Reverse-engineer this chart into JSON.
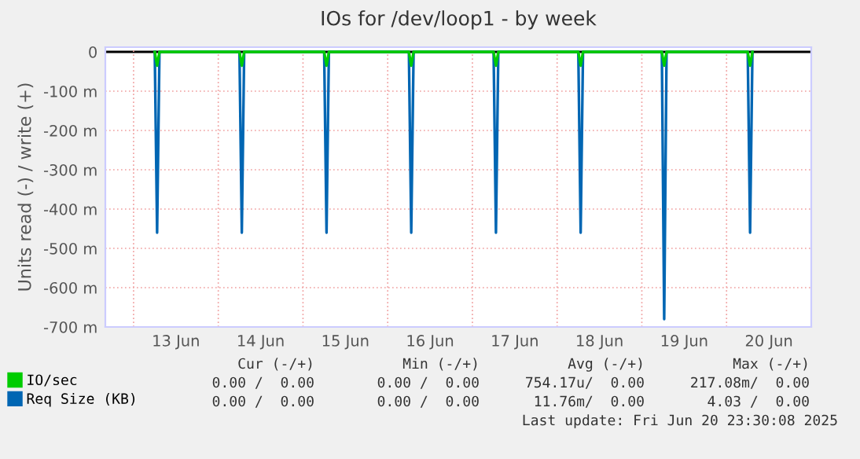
{
  "chart_data": {
    "type": "line",
    "title": "IOs for /dev/loop1 - by week",
    "ylabel": "Units read (-) / write (+)",
    "x": [
      "2025-06-13T06:00",
      "2025-06-13T06:40",
      "2025-06-13T07:20",
      "2025-06-14T06:00",
      "2025-06-14T06:40",
      "2025-06-14T07:20",
      "2025-06-15T06:00",
      "2025-06-15T06:40",
      "2025-06-15T07:20",
      "2025-06-16T06:00",
      "2025-06-16T06:40",
      "2025-06-16T07:20",
      "2025-06-17T06:00",
      "2025-06-17T06:40",
      "2025-06-17T07:20",
      "2025-06-18T06:00",
      "2025-06-18T06:40",
      "2025-06-18T07:20",
      "2025-06-19T05:40",
      "2025-06-19T06:20",
      "2025-06-19T07:00",
      "2025-06-20T06:00",
      "2025-06-20T06:40",
      "2025-06-20T07:20"
    ],
    "series": [
      {
        "name": "IO/sec",
        "color": "#00cc00",
        "values": [
          0,
          -35,
          0,
          0,
          -35,
          0,
          0,
          -35,
          0,
          0,
          -35,
          0,
          0,
          -35,
          0,
          0,
          -35,
          0,
          0,
          -35,
          0,
          0,
          -35,
          0
        ]
      },
      {
        "name": "Req Size (KB)",
        "color": "#0066b3",
        "values": [
          0,
          -460,
          0,
          0,
          -460,
          0,
          0,
          -460,
          0,
          0,
          -460,
          0,
          0,
          -460,
          0,
          0,
          -460,
          0,
          0,
          -680,
          0,
          0,
          -460,
          0
        ]
      }
    ],
    "xlim": [
      "2025-06-12T16:00",
      "2025-06-21T00:00"
    ],
    "xticks": [
      {
        "value": "2025-06-13T12:00",
        "label": "13 Jun"
      },
      {
        "value": "2025-06-14T12:00",
        "label": "14 Jun"
      },
      {
        "value": "2025-06-15T12:00",
        "label": "15 Jun"
      },
      {
        "value": "2025-06-16T12:00",
        "label": "16 Jun"
      },
      {
        "value": "2025-06-17T12:00",
        "label": "17 Jun"
      },
      {
        "value": "2025-06-18T12:00",
        "label": "18 Jun"
      },
      {
        "value": "2025-06-19T12:00",
        "label": "19 Jun"
      },
      {
        "value": "2025-06-20T12:00",
        "label": "20 Jun"
      }
    ],
    "ylim": [
      -700,
      12
    ],
    "yticks": [
      0,
      {
        "value": -100,
        "label": "-100 m"
      },
      {
        "value": -200,
        "label": "-200 m"
      },
      {
        "value": -300,
        "label": "-300 m"
      },
      {
        "value": -400,
        "label": "-400 m"
      },
      {
        "value": -500,
        "label": "-500 m"
      },
      {
        "value": -600,
        "label": "-600 m"
      },
      {
        "value": -700,
        "label": "-700 m"
      }
    ],
    "grid": true,
    "legend": "bottom",
    "marker": "none",
    "line_style": "solid",
    "annotations": [
      "Cur (-/+)",
      "Min (-/+)",
      "Avg (-/+)",
      "Max (-/+)",
      "0.00 /  0.00",
      "0.00 /  0.00",
      "754.17u/  0.00",
      "217.08m/  0.00",
      "0.00 /  0.00",
      "0.00 /  0.00",
      "11.76m/  0.00",
      "4.03 /  0.00",
      "Last update: Fri Jun 20 23:30:08 2025"
    ]
  }
}
